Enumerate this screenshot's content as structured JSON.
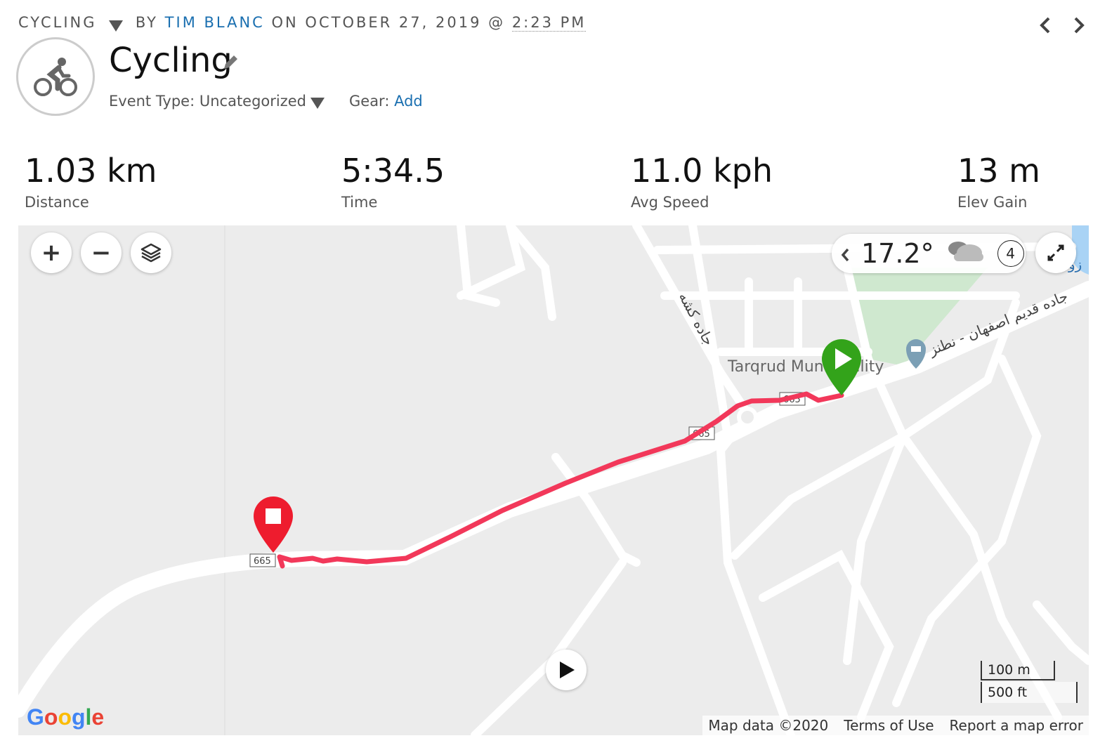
{
  "header": {
    "activity_type": "CYCLING",
    "by": "BY",
    "author": "TIM BLANC",
    "on": "ON OCTOBER 27, 2019 @",
    "time": "2:23 PM",
    "prev_icon": "chevron-left-icon",
    "next_icon": "chevron-right-icon"
  },
  "activity": {
    "icon": "cycling-icon",
    "title": "Cycling",
    "event_type_label": "Event Type:",
    "event_type_value": "Uncategorized",
    "gear_label": "Gear:",
    "gear_link": "Add"
  },
  "stats": [
    {
      "value": "1.03 km",
      "label": "Distance"
    },
    {
      "value": "5:34.5",
      "label": "Time"
    },
    {
      "value": "11.0 kph",
      "label": "Avg Speed"
    },
    {
      "value": "13 m",
      "label": "Elev Gain"
    }
  ],
  "map": {
    "controls": {
      "zoom_in": "+",
      "zoom_out": "−",
      "layers_icon": "layers-icon",
      "fullscreen_icon": "expand-icon",
      "play_icon": "play-icon"
    },
    "weather": {
      "temperature": "17.2°",
      "icon": "cloud-icon",
      "wind": "4"
    },
    "labels": {
      "poi": "Tarqrud Municipality",
      "road_main": "جاده قدیم اصفهان - نطنز",
      "road_side": "جاده کشه",
      "road_number": "665",
      "water": "زو"
    },
    "scale": {
      "metric": "100 m",
      "imperial": "500 ft"
    },
    "footer": {
      "logo": "Google",
      "data": "Map data ©2020",
      "terms": "Terms of Use",
      "report": "Report a map error"
    },
    "colors": {
      "route": "#f2385a",
      "start": "#33a31a",
      "end": "#ee1c2e",
      "park": "#cfe8cf",
      "water": "#a9d3f5"
    }
  }
}
